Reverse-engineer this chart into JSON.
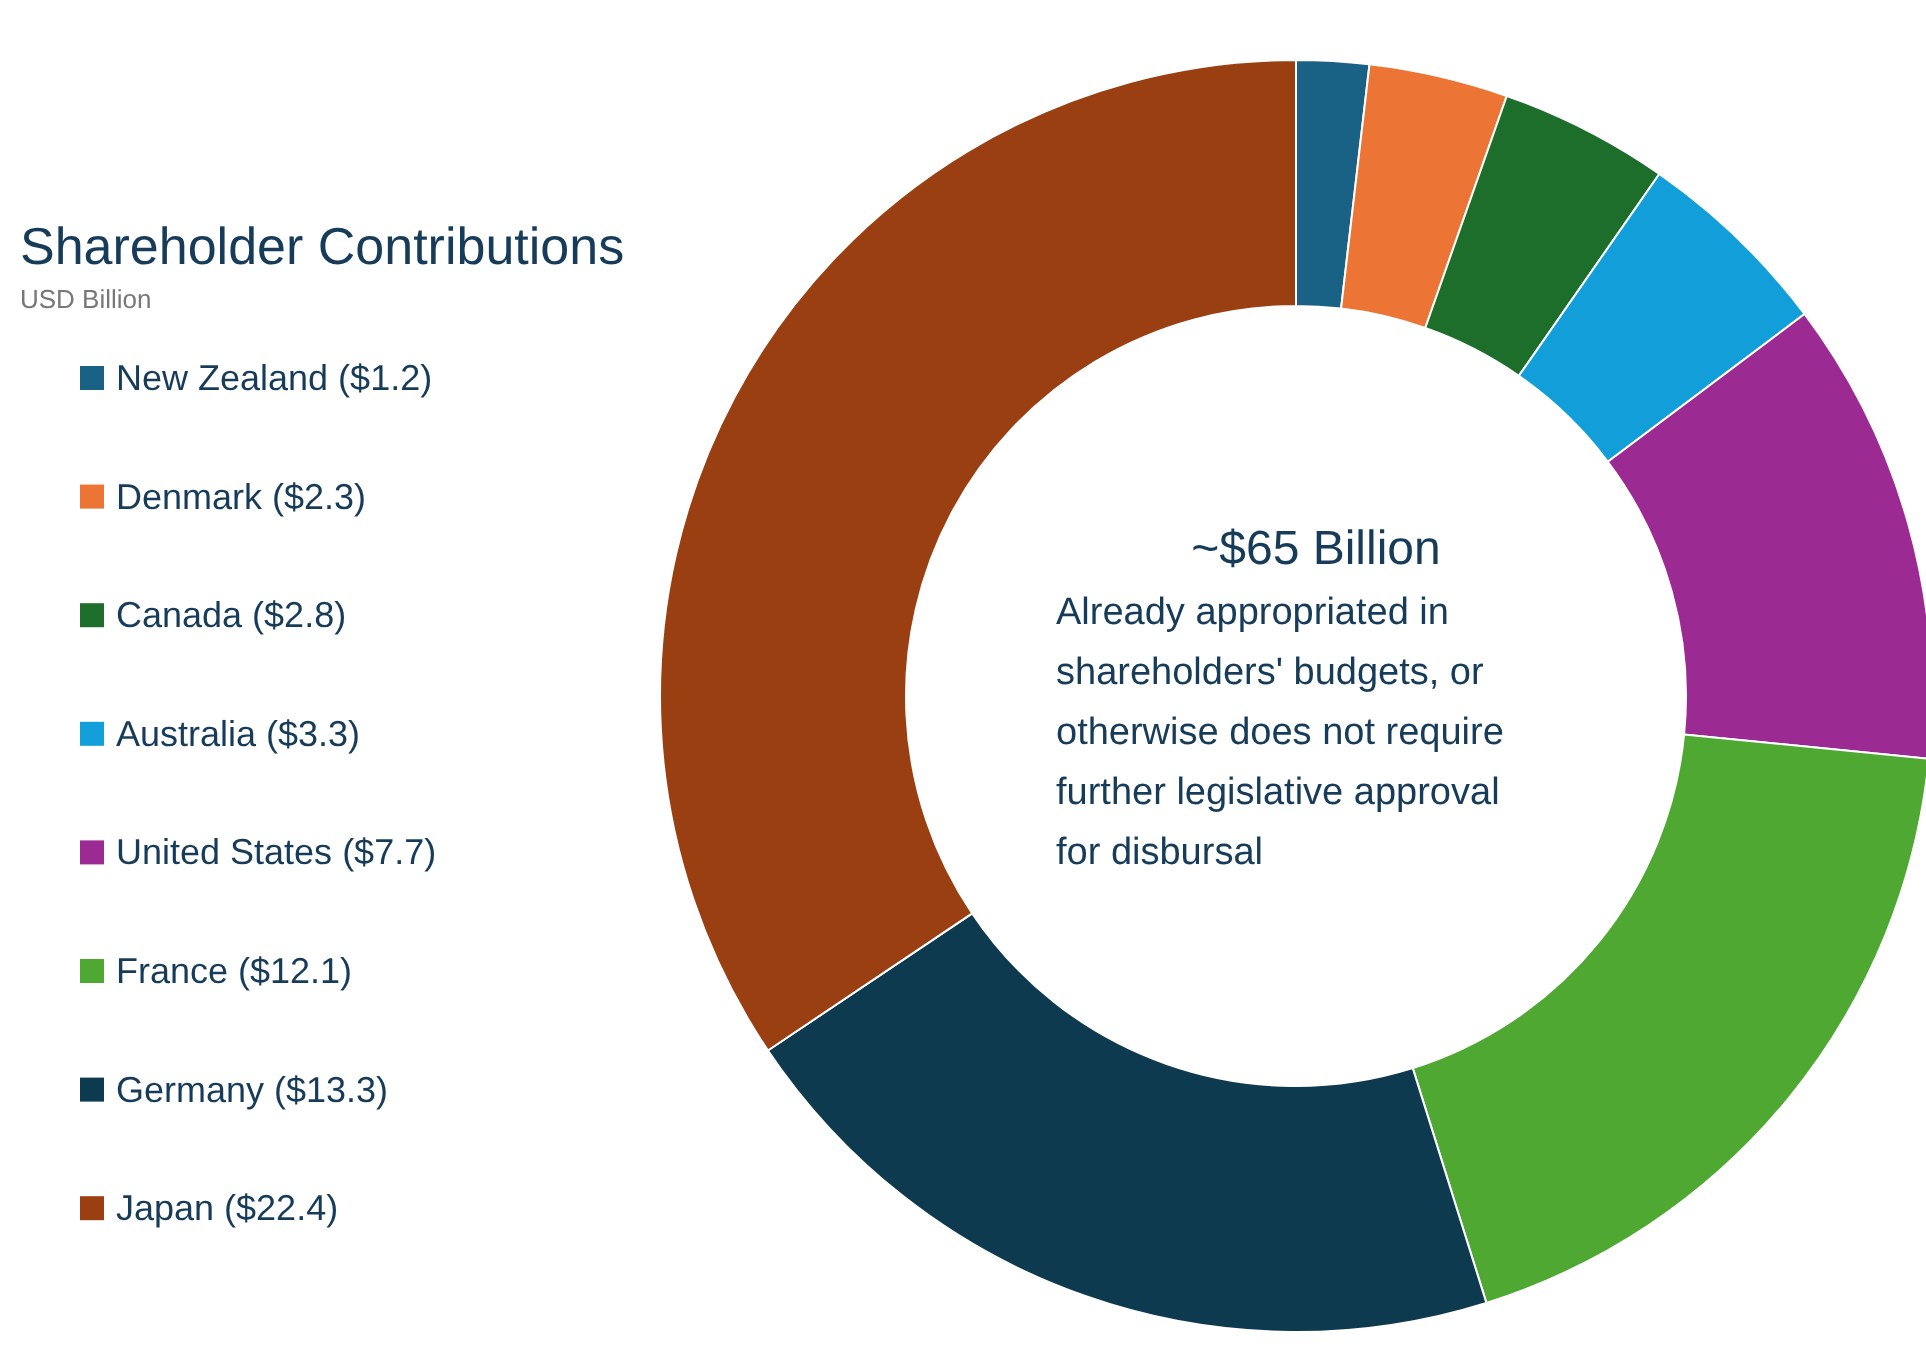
{
  "chart_data": {
    "type": "donut",
    "title": "Shareholder Contributions",
    "subtitle": "USD Billion",
    "categories": [
      "New Zealand ($1.2)",
      "Denmark ($2.3)",
      "Canada ($2.8)",
      "Australia ($3.3)",
      "United States ($7.7)",
      "France ($12.1)",
      "Germany ($13.3)",
      "Japan ($22.4)"
    ],
    "values": [
      1.2,
      2.3,
      2.8,
      3.3,
      7.7,
      12.1,
      13.3,
      22.4
    ],
    "colors": [
      "#1a6285",
      "#ec7434",
      "#1d6e2a",
      "#129ed8",
      "#9c2a93",
      "#4ea832",
      "#0e3a50",
      "#993f11"
    ],
    "annotations": [
      "~$65 Billion",
      "Already appropriated in shareholders' budgets, or otherwise does not require further legislative approval for disbursal"
    ],
    "legend": "left"
  }
}
